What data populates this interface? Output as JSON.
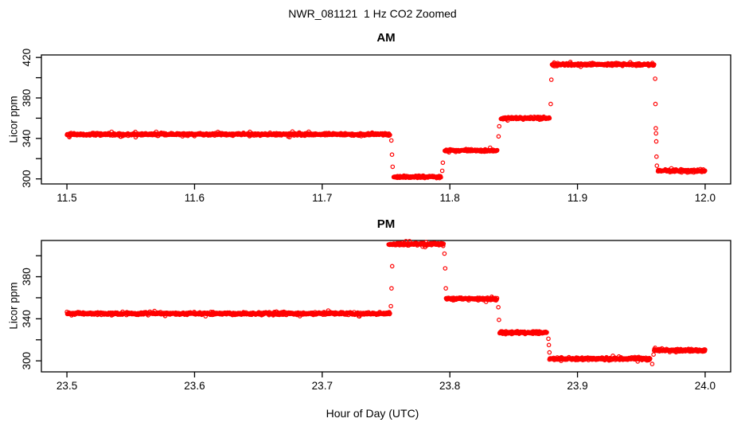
{
  "figure": {
    "title": "NWR_081121  1 Hz CO2 Zoomed",
    "xlabel": "Hour of Day (UTC)",
    "point_color": "#FF0000",
    "background_color": "#FFFFFF",
    "axis_color": "#000000"
  },
  "chart_data": [
    {
      "panel": "AM",
      "type": "scatter",
      "marker": "open-circle",
      "color": "#FF0000",
      "ylabel": "Licor ppm",
      "xlim": [
        11.48,
        12.02
      ],
      "ylim": [
        295,
        422.5
      ],
      "xticks": [
        11.5,
        11.6,
        11.7,
        11.8,
        11.9,
        12.0
      ],
      "xtick_labels": [
        "11.5",
        "11.6",
        "11.7",
        "11.8",
        "11.9",
        "12.0"
      ],
      "yticks": [
        300,
        320,
        340,
        360,
        380,
        400,
        420
      ],
      "ytick_labels": [
        "300",
        "",
        "340",
        "",
        "380",
        "",
        "420"
      ],
      "grid": false,
      "sample_rate_hz": 1,
      "segments": [
        {
          "t_start": 11.5,
          "t_end": 11.753,
          "ppm": 344
        },
        {
          "t_start": 11.756,
          "t_end": 11.793,
          "ppm": 302
        },
        {
          "t_start": 11.796,
          "t_end": 11.837,
          "ppm": 328
        },
        {
          "t_start": 11.84,
          "t_end": 11.878,
          "ppm": 360
        },
        {
          "t_start": 11.88,
          "t_end": 11.96,
          "ppm": 413
        },
        {
          "t_start": 11.963,
          "t_end": 12.0,
          "ppm": 308
        }
      ],
      "transition_points": [
        {
          "t": 11.7542,
          "ppm": 338
        },
        {
          "t": 11.7547,
          "ppm": 324
        },
        {
          "t": 11.7552,
          "ppm": 312
        },
        {
          "t": 11.794,
          "ppm": 308
        },
        {
          "t": 11.7945,
          "ppm": 316
        },
        {
          "t": 11.8382,
          "ppm": 342
        },
        {
          "t": 11.8387,
          "ppm": 352
        },
        {
          "t": 11.879,
          "ppm": 374
        },
        {
          "t": 11.8795,
          "ppm": 398
        },
        {
          "t": 11.9608,
          "ppm": 399
        },
        {
          "t": 11.9611,
          "ppm": 374
        },
        {
          "t": 11.9613,
          "ppm": 350
        },
        {
          "t": 11.9615,
          "ppm": 345
        },
        {
          "t": 11.9617,
          "ppm": 337
        },
        {
          "t": 11.9619,
          "ppm": 322
        },
        {
          "t": 11.9622,
          "ppm": 313
        }
      ]
    },
    {
      "panel": "PM",
      "type": "scatter",
      "marker": "open-circle",
      "color": "#FF0000",
      "ylabel": "Licor ppm",
      "xlim": [
        23.48,
        24.02
      ],
      "ylim": [
        289.5,
        414.5
      ],
      "xticks": [
        23.5,
        23.6,
        23.7,
        23.8,
        23.9,
        24.0
      ],
      "xtick_labels": [
        "23.5",
        "23.6",
        "23.7",
        "23.8",
        "23.9",
        "24.0"
      ],
      "yticks": [
        300,
        320,
        340,
        360,
        380,
        400
      ],
      "ytick_labels": [
        "300",
        "",
        "340",
        "",
        "380",
        ""
      ],
      "grid": false,
      "sample_rate_hz": 1,
      "segments": [
        {
          "t_start": 23.5,
          "t_end": 23.753,
          "ppm": 345
        },
        {
          "t_start": 23.752,
          "t_end": 23.795,
          "ppm": 411
        },
        {
          "t_start": 23.797,
          "t_end": 23.837,
          "ppm": 359
        },
        {
          "t_start": 23.839,
          "t_end": 23.876,
          "ppm": 327
        },
        {
          "t_start": 23.878,
          "t_end": 23.957,
          "ppm": 302
        },
        {
          "t_start": 23.96,
          "t_end": 24.0,
          "ppm": 310
        }
      ],
      "transition_points": [
        {
          "t": 23.7538,
          "ppm": 352
        },
        {
          "t": 23.7543,
          "ppm": 369
        },
        {
          "t": 23.7548,
          "ppm": 390
        },
        {
          "t": 23.7958,
          "ppm": 402
        },
        {
          "t": 23.7963,
          "ppm": 388
        },
        {
          "t": 23.7968,
          "ppm": 369
        },
        {
          "t": 23.838,
          "ppm": 351
        },
        {
          "t": 23.8385,
          "ppm": 339
        },
        {
          "t": 23.8772,
          "ppm": 321
        },
        {
          "t": 23.8776,
          "ppm": 315
        },
        {
          "t": 23.878,
          "ppm": 308
        },
        {
          "t": 23.9585,
          "ppm": 297
        },
        {
          "t": 23.9596,
          "ppm": 306
        }
      ]
    }
  ]
}
